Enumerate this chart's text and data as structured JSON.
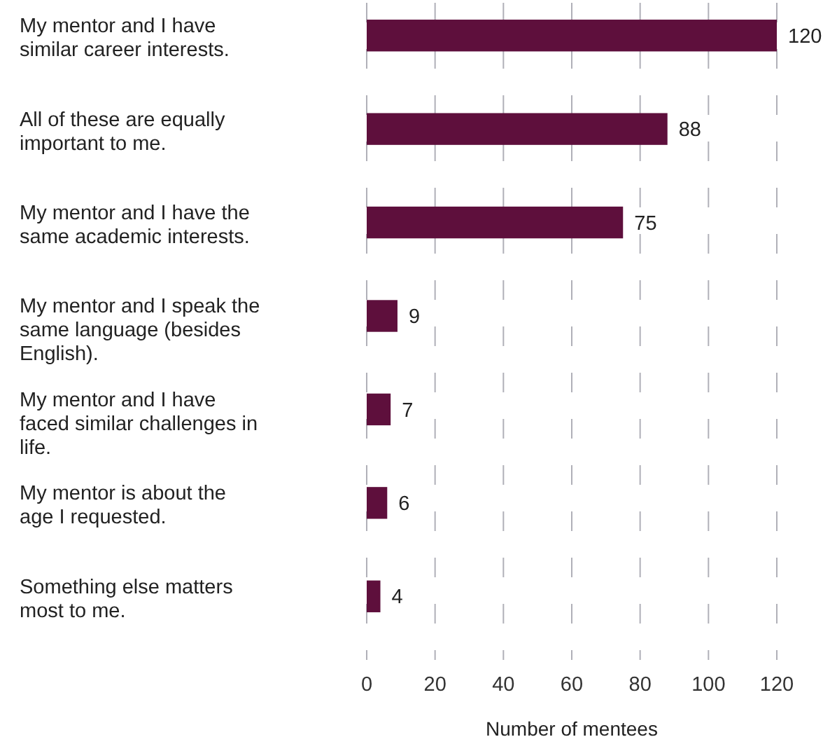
{
  "chart_data": {
    "type": "bar",
    "orientation": "horizontal",
    "xlabel": "Number of mentees",
    "categories": [
      "My mentor and I have similar career interests.",
      "All of these are equally important to me.",
      "My mentor and I have the same academic interests.",
      "My mentor and I speak the same language (besides English).",
      "My mentor and I have faced similar challenges in life.",
      "My mentor is about the age I requested.",
      "Something else matters most to me."
    ],
    "values": [
      120,
      88,
      75,
      9,
      7,
      6,
      4
    ],
    "color": "#5e0f3c",
    "xlim": [
      0,
      120
    ],
    "xticks": [
      0,
      20,
      40,
      60,
      80,
      100,
      120
    ],
    "grid": "x",
    "data_labels": true
  }
}
